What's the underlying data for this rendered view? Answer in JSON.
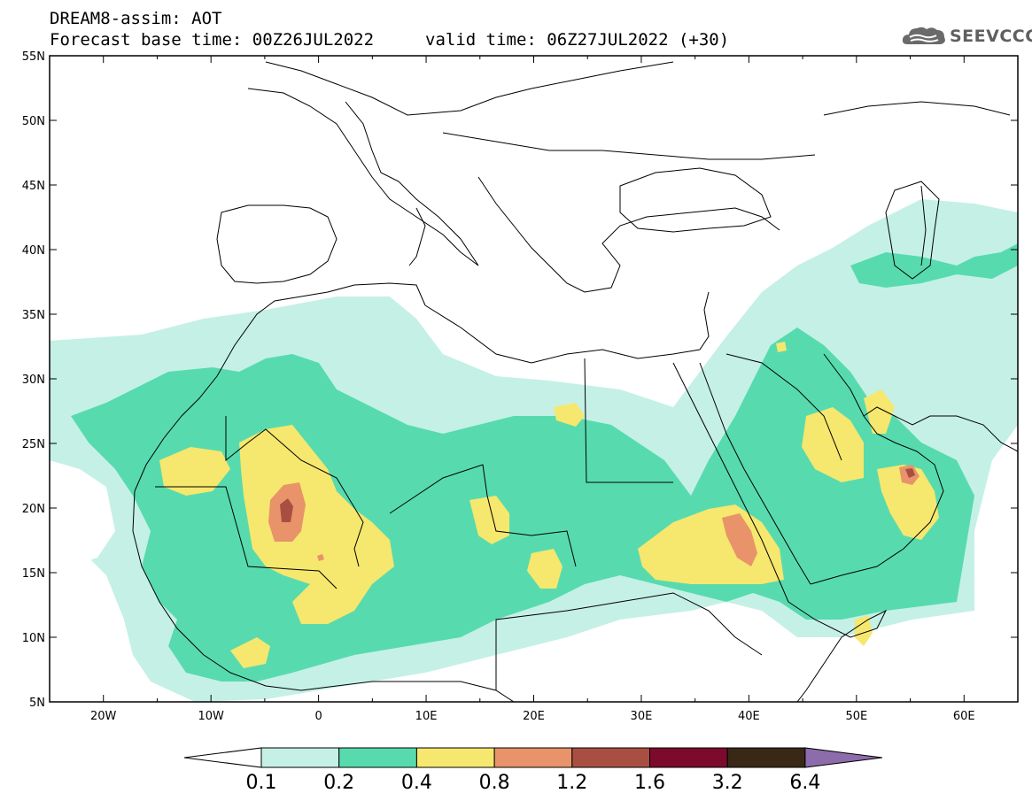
{
  "header": {
    "title_line1": "DREAM8-assim: AOT",
    "title_line2": "Forecast base time: 00Z26JUL2022",
    "valid_time": "valid time: 06Z27JUL2022 (+30)",
    "logo_text": "SEEVCCC",
    "logo_icon": "cloud-icon"
  },
  "map": {
    "lon_ticks": [
      "20W",
      "10W",
      "0",
      "10E",
      "20E",
      "30E",
      "40E",
      "50E",
      "60E"
    ],
    "lat_ticks": [
      "55N",
      "50N",
      "45N",
      "40N",
      "35N",
      "30N",
      "25N",
      "20N",
      "15N",
      "10N",
      "5N"
    ],
    "lon_range": [
      -25,
      65
    ],
    "lat_range": [
      5,
      55
    ]
  },
  "legend": {
    "levels": [
      "0.1",
      "0.2",
      "0.4",
      "0.8",
      "1.2",
      "1.6",
      "3.2",
      "6.4"
    ],
    "colors": [
      "#ffffff",
      "#c5f0e6",
      "#57dbae",
      "#f6e76e",
      "#e8936a",
      "#a84f42",
      "#7c0a2c",
      "#3a2817",
      "#8d6cab"
    ]
  }
}
